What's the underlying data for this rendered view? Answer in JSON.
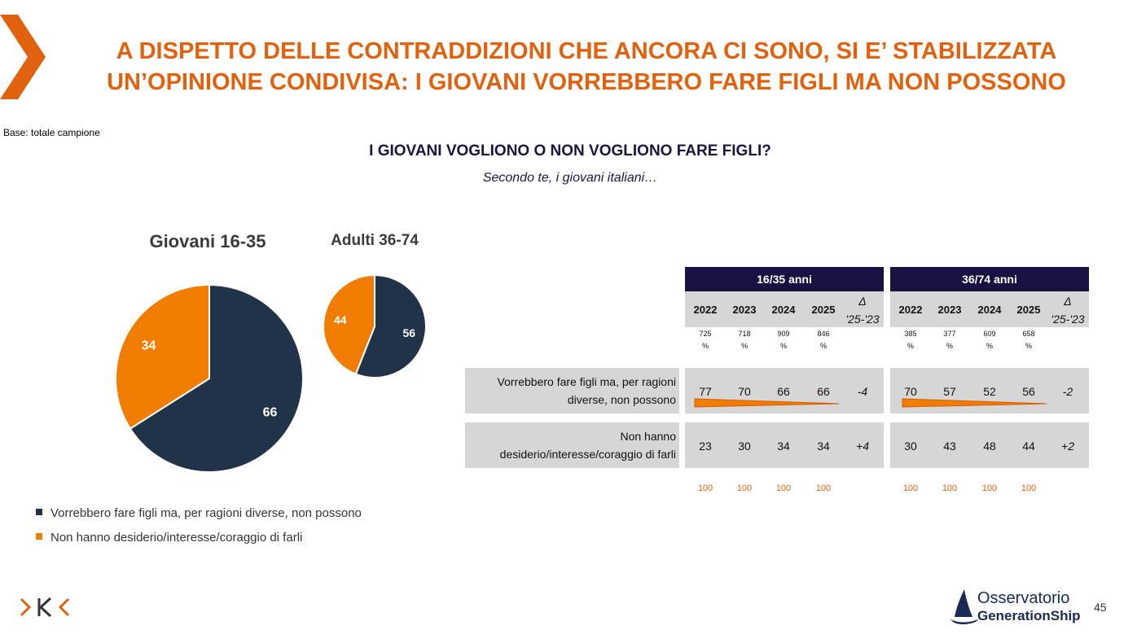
{
  "title_line1": "A DISPETTO DELLE CONTRADDIZIONI CHE ANCORA CI SONO, SI E’ STABILIZZATA",
  "title_line2": "UN’OPINIONE CONDIVISA: I GIOVANI VORREBBERO FARE FIGLI MA NON POSSONO",
  "base": "Base: totale campione",
  "question": "I GIOVANI VOGLIONO O NON VOGLIONO FARE FIGLI?",
  "subquestion": "Secondo te, i giovani italiani…",
  "colors": {
    "navy": "#213349",
    "orange": "#f07d00",
    "brand_orange": "#e0620f",
    "header": "#1b1141"
  },
  "chart_data": [
    {
      "type": "pie",
      "title": "Giovani 16-35",
      "categories": [
        "Vorrebbero fare figli ma, per ragioni diverse, non possono",
        "Non hanno desiderio/interesse/coraggio di farli"
      ],
      "values": [
        66,
        34
      ]
    },
    {
      "type": "pie",
      "title": "Adulti 36-74",
      "categories": [
        "Vorrebbero fare figli ma, per ragioni diverse, non possono",
        "Non hanno desiderio/interesse/coraggio di farli"
      ],
      "values": [
        56,
        44
      ]
    },
    {
      "type": "table",
      "groups": [
        {
          "header": "16/35 anni",
          "years": [
            "2022",
            "2023",
            "2024",
            "2025"
          ],
          "delta_label": [
            "Δ",
            "'25-'23"
          ],
          "bases": [
            "725",
            "718",
            "909",
            "846"
          ],
          "rows": [
            {
              "values": [
                77,
                70,
                66,
                66
              ],
              "delta": "-4"
            },
            {
              "values": [
                23,
                30,
                34,
                34
              ],
              "delta": "+4"
            }
          ],
          "totals": [
            100,
            100,
            100,
            100
          ]
        },
        {
          "header": "36/74 anni",
          "years": [
            "2022",
            "2023",
            "2024",
            "2025"
          ],
          "delta_label": [
            "Δ",
            "'25-'23"
          ],
          "bases": [
            "385",
            "377",
            "609",
            "658"
          ],
          "rows": [
            {
              "values": [
                70,
                57,
                52,
                56
              ],
              "delta": "-2"
            },
            {
              "values": [
                30,
                43,
                48,
                44
              ],
              "delta": "+2"
            }
          ],
          "totals": [
            100,
            100,
            100,
            100
          ]
        }
      ],
      "row_labels": [
        [
          "Vorrebbero fare figli ma, per ragioni",
          "diverse, non possono"
        ],
        [
          "Non hanno",
          "desiderio/interesse/coraggio di farli"
        ]
      ],
      "pct_symbol": "%"
    }
  ],
  "legend": [
    {
      "label": "Vorrebbero fare figli ma, per ragioni diverse, non possono",
      "color": "#213349"
    },
    {
      "label": "Non hanno desiderio/interesse/coraggio di farli",
      "color": "#f07d00"
    }
  ],
  "footer": {
    "brand_left": "›K‹",
    "brand_right_1": "Osservatorio",
    "brand_right_2": "GenerationShip",
    "page_number": "45"
  }
}
